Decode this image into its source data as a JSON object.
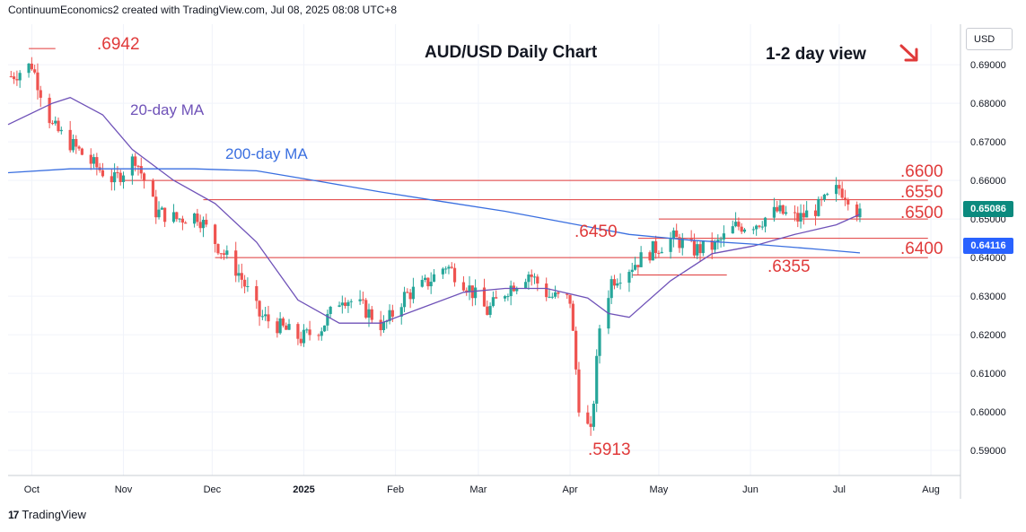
{
  "header": {
    "attribution": "ContinuumEconomics2 created with TradingView.com, Jul 08, 2025 08:08 UTC+8"
  },
  "footer": {
    "brand": "TradingView",
    "logo_text": "17"
  },
  "chart_title": "AUD/USD Daily Chart",
  "view_label": "1-2 day view",
  "arrow_icon": "down-right-arrow-icon",
  "currency": "USD",
  "ma_labels": {
    "ma20": "20-day MA",
    "ma200": "200-day MA"
  },
  "badges": {
    "last": "0.65086",
    "ma": "0.64116"
  },
  "colors": {
    "up": "#26a69a",
    "down": "#ef5350",
    "ma20": "#6f52b8",
    "ma200": "#3a6fe0",
    "annotation": "#e03a3a",
    "badge_last": "#0b8a7e",
    "badge_ma": "#2962ff"
  },
  "annotations": {
    "high": ".6942",
    "low": ".5913",
    "r6600": ".6600",
    "r6550": ".6550",
    "s6500": ".6500",
    "s6450": ".6450",
    "s6400": ".6400",
    "s6355": ".6355"
  },
  "chart_data": {
    "type": "line",
    "title": "AUD/USD Daily Chart",
    "yaxis_ticks": [
      "0.69000",
      "0.68000",
      "0.67000",
      "0.66000",
      "0.65000",
      "0.64000",
      "0.63000",
      "0.62000",
      "0.61000",
      "0.60000",
      "0.59000"
    ],
    "xaxis_ticks": [
      "Oct",
      "Nov",
      "Dec",
      "2025",
      "Feb",
      "Mar",
      "Apr",
      "May",
      "Jun",
      "Jul",
      "Aug"
    ],
    "ylim": [
      0.5835,
      0.7005
    ],
    "x_start": "2024-09-23",
    "x_end": "2025-08-11",
    "levels": [
      {
        "label": ".6942",
        "value": 0.6942,
        "from": "2024-09-30",
        "to": "2024-10-09"
      },
      {
        "label": ".6600",
        "value": 0.66,
        "from": "2024-11-01",
        "to": "2025-07-31"
      },
      {
        "label": ".6550",
        "value": 0.655,
        "from": "2024-11-28",
        "to": "2025-07-31"
      },
      {
        "label": ".6500",
        "value": 0.65,
        "from": "2025-05-01",
        "to": "2025-07-31"
      },
      {
        "label": ".6450",
        "value": 0.645,
        "from": "2025-04-24",
        "to": "2025-07-31"
      },
      {
        "label": ".6400",
        "value": 0.64,
        "from": "2024-12-02",
        "to": "2025-07-31"
      },
      {
        "label": ".6355",
        "value": 0.6355,
        "from": "2025-04-22",
        "to": "2025-05-24"
      }
    ],
    "series": [
      {
        "name": "AUD/USD",
        "kind": "close",
        "x": [
          "2024-09-24",
          "2024-10-01",
          "2024-10-08",
          "2024-10-15",
          "2024-10-22",
          "2024-10-29",
          "2024-11-05",
          "2024-11-12",
          "2024-11-19",
          "2024-11-26",
          "2024-12-03",
          "2024-12-10",
          "2024-12-17",
          "2024-12-24",
          "2024-12-31",
          "2025-01-07",
          "2025-01-14",
          "2025-01-21",
          "2025-01-28",
          "2025-02-04",
          "2025-02-11",
          "2025-02-18",
          "2025-02-25",
          "2025-03-04",
          "2025-03-11",
          "2025-03-18",
          "2025-03-25",
          "2025-04-01",
          "2025-04-04",
          "2025-04-08",
          "2025-04-11",
          "2025-04-15",
          "2025-04-22",
          "2025-04-29",
          "2025-05-06",
          "2025-05-13",
          "2025-05-20",
          "2025-05-27",
          "2025-06-03",
          "2025-06-10",
          "2025-06-17",
          "2025-06-24",
          "2025-07-01",
          "2025-07-04",
          "2025-07-08"
        ],
        "y": [
          0.687,
          0.69,
          0.674,
          0.669,
          0.664,
          0.66,
          0.666,
          0.652,
          0.65,
          0.651,
          0.643,
          0.636,
          0.625,
          0.622,
          0.619,
          0.622,
          0.63,
          0.627,
          0.622,
          0.63,
          0.633,
          0.638,
          0.633,
          0.626,
          0.632,
          0.636,
          0.63,
          0.629,
          0.602,
          0.594,
          0.622,
          0.634,
          0.638,
          0.642,
          0.645,
          0.642,
          0.643,
          0.648,
          0.649,
          0.652,
          0.65,
          0.653,
          0.658,
          0.656,
          0.6509
        ]
      },
      {
        "name": "20-day MA",
        "x": [
          "2024-09-23",
          "2024-10-08",
          "2024-10-14",
          "2024-10-25",
          "2024-11-04",
          "2024-11-18",
          "2024-12-02",
          "2024-12-16",
          "2024-12-30",
          "2025-01-13",
          "2025-01-27",
          "2025-02-10",
          "2025-02-24",
          "2025-03-10",
          "2025-03-24",
          "2025-04-07",
          "2025-04-14",
          "2025-04-21",
          "2025-05-05",
          "2025-05-19",
          "2025-06-02",
          "2025-06-16",
          "2025-06-30",
          "2025-07-08"
        ],
        "y": [
          0.6745,
          0.68,
          0.6815,
          0.677,
          0.668,
          0.66,
          0.654,
          0.644,
          0.629,
          0.623,
          0.623,
          0.627,
          0.631,
          0.632,
          0.632,
          0.6295,
          0.6255,
          0.6245,
          0.634,
          0.641,
          0.643,
          0.646,
          0.6485,
          0.6512
        ]
      },
      {
        "name": "200-day MA",
        "x": [
          "2024-09-23",
          "2024-10-14",
          "2024-11-04",
          "2024-11-25",
          "2024-12-16",
          "2025-01-06",
          "2025-01-27",
          "2025-02-17",
          "2025-03-10",
          "2025-03-31",
          "2025-04-21",
          "2025-05-12",
          "2025-06-02",
          "2025-06-23",
          "2025-07-08"
        ],
        "y": [
          0.662,
          0.663,
          0.663,
          0.663,
          0.6625,
          0.6598,
          0.657,
          0.6545,
          0.652,
          0.649,
          0.646,
          0.6445,
          0.6435,
          0.6422,
          0.6412
        ]
      }
    ]
  }
}
